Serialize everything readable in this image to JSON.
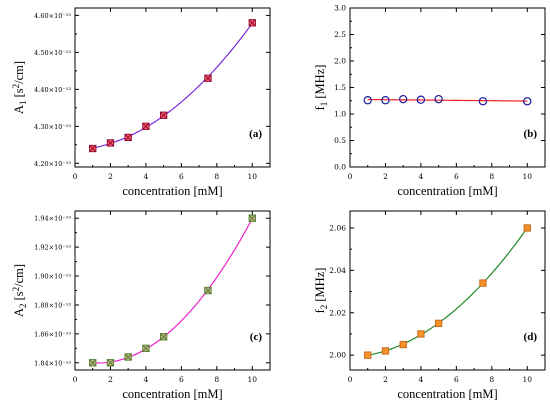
{
  "chart_data": [
    {
      "type": "scatter",
      "panel_label": "(a)",
      "xlabel": "concentration [mM]",
      "ylabel": "A1 [s2/cm]",
      "ylabel_parts": {
        "base": "A",
        "sub": "1",
        "rest": " [s",
        "sup": "2",
        "end": "/cm]"
      },
      "x_ticks": [
        "0",
        "2",
        "4",
        "6",
        "8",
        "10"
      ],
      "y_ticks": [
        "4.20×10⁻¹³",
        "4.30×10⁻¹³",
        "4.40×10⁻¹³",
        "4.50×10⁻¹³",
        "4.60×10⁻¹³"
      ],
      "xlim": [
        0,
        11
      ],
      "ylim": [
        4.19,
        4.62
      ],
      "y_tick_values": [
        4.2,
        4.3,
        4.4,
        4.5,
        4.6
      ],
      "y_unit_scale": "1e-13",
      "series": [
        {
          "x": [
            1,
            2,
            3,
            4,
            5,
            7.5,
            10
          ],
          "y": [
            4.24,
            4.255,
            4.27,
            4.3,
            4.33,
            4.43,
            4.58
          ],
          "marker": "square-x",
          "marker_fill": "#ff5b6e",
          "marker_edge": "#8a0a2c",
          "fit_color": "#7a2be0",
          "fit": "quadratic"
        }
      ]
    },
    {
      "type": "scatter",
      "panel_label": "(b)",
      "xlabel": "concentration [mM]",
      "ylabel": "f1 [MHz]",
      "ylabel_parts": {
        "base": "f",
        "sub": "1",
        "rest": " [MHz]",
        "sup": "",
        "end": ""
      },
      "x_ticks": [
        "0",
        "2",
        "4",
        "6",
        "8",
        "10"
      ],
      "y_ticks": [
        "0.0",
        "0.5",
        "1.0",
        "1.5",
        "2.0",
        "2.5",
        "3.0"
      ],
      "xlim": [
        0,
        11
      ],
      "ylim": [
        0,
        3.0
      ],
      "y_tick_values": [
        0.0,
        0.5,
        1.0,
        1.5,
        2.0,
        2.5,
        3.0
      ],
      "series": [
        {
          "x": [
            1,
            2,
            3,
            4,
            5,
            7.5,
            10
          ],
          "y": [
            1.26,
            1.26,
            1.28,
            1.27,
            1.28,
            1.24,
            1.24
          ],
          "marker": "circle",
          "marker_fill": "none",
          "marker_edge": "#1a1aa0",
          "fit_color": "#ee2222",
          "fit": "linear"
        }
      ]
    },
    {
      "type": "scatter",
      "panel_label": "(c)",
      "xlabel": "concentration [mM]",
      "ylabel": "A2 [s2/cm]",
      "ylabel_parts": {
        "base": "A",
        "sub": "2",
        "rest": " [s",
        "sup": "2",
        "end": "/cm]"
      },
      "x_ticks": [
        "0",
        "2",
        "4",
        "6",
        "8",
        "10"
      ],
      "y_ticks": [
        "1.84×10⁻¹³",
        "1.86×10⁻¹³",
        "1.88×10⁻¹³",
        "1.90×10⁻¹³",
        "1.92×10⁻¹³",
        "1.94×10⁻¹³"
      ],
      "xlim": [
        0,
        11
      ],
      "ylim": [
        1.835,
        1.945
      ],
      "y_tick_values": [
        1.84,
        1.86,
        1.88,
        1.9,
        1.92,
        1.94
      ],
      "y_unit_scale": "1e-13",
      "series": [
        {
          "x": [
            1,
            2,
            3,
            4,
            5,
            7.5,
            10
          ],
          "y": [
            1.84,
            1.84,
            1.844,
            1.85,
            1.858,
            1.89,
            1.94
          ],
          "marker": "square-x",
          "marker_fill": "#c8b48a",
          "marker_edge": "#4a7a2a",
          "fit_color": "#ee22cc",
          "fit": "quadratic"
        }
      ]
    },
    {
      "type": "scatter",
      "panel_label": "(d)",
      "xlabel": "concentration [mM]",
      "ylabel": "f2 [MHz]",
      "ylabel_parts": {
        "base": "f",
        "sub": "2",
        "rest": " [MHz]",
        "sup": "",
        "end": ""
      },
      "x_ticks": [
        "0",
        "2",
        "4",
        "6",
        "8",
        "10"
      ],
      "y_ticks": [
        "2.00",
        "2.02",
        "2.04",
        "2.06"
      ],
      "xlim": [
        0,
        11
      ],
      "ylim": [
        1.993,
        2.068
      ],
      "y_tick_values": [
        2.0,
        2.02,
        2.04,
        2.06
      ],
      "series": [
        {
          "x": [
            1,
            2,
            3,
            4,
            5,
            7.5,
            10
          ],
          "y": [
            2.0,
            2.002,
            2.005,
            2.01,
            2.015,
            2.034,
            2.06
          ],
          "marker": "square",
          "marker_fill": "#f5922a",
          "marker_edge": "#c0651a",
          "fit_color": "#1f8a2a",
          "fit": "quadratic"
        }
      ]
    }
  ]
}
